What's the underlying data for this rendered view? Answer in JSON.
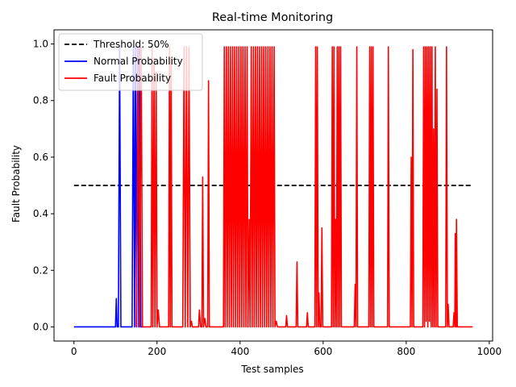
{
  "chart_data": {
    "type": "line",
    "title": "Real-time Monitoring",
    "xlabel": "Test samples",
    "ylabel": "Fault Probability",
    "xlim": [
      -48,
      1008
    ],
    "ylim": [
      -0.05,
      1.05
    ],
    "xticks": [
      0,
      200,
      400,
      600,
      800,
      1000
    ],
    "yticks": [
      0.0,
      0.2,
      0.4,
      0.6,
      0.8,
      1.0
    ],
    "xtick_labels": [
      "0",
      "200",
      "400",
      "600",
      "800",
      "1000"
    ],
    "ytick_labels": [
      "0.0",
      "0.2",
      "0.4",
      "0.6",
      "0.8",
      "1.0"
    ],
    "grid": false,
    "legend_position": "top-left",
    "threshold": {
      "name": "Threshold: 50%",
      "value": 0.5,
      "x_range": [
        0,
        960
      ],
      "color": "#000000",
      "style": "dashed"
    },
    "series": [
      {
        "name": "Normal Probability",
        "color": "#0000ff",
        "points": [
          [
            0,
            0.0
          ],
          [
            100,
            0.0
          ],
          [
            102,
            0.1
          ],
          [
            104,
            0.0
          ],
          [
            107,
            0.0
          ],
          [
            110,
            0.99
          ],
          [
            113,
            0.0
          ],
          [
            140,
            0.0
          ],
          [
            143,
            0.99
          ],
          [
            146,
            0.0
          ],
          [
            148,
            0.99
          ],
          [
            151,
            0.0
          ],
          [
            153,
            0.99
          ],
          [
            156,
            0.0
          ],
          [
            158,
            0.99
          ],
          [
            161,
            0.0
          ],
          [
            166,
            0.0
          ]
        ]
      },
      {
        "name": "Fault Probability",
        "color": "#ff0000",
        "points": [
          [
            150,
            0.0
          ],
          [
            155,
            0.99
          ],
          [
            158,
            0.0
          ],
          [
            162,
            0.99
          ],
          [
            165,
            0.0
          ],
          [
            175,
            0.0
          ],
          [
            186,
            0.0
          ],
          [
            188,
            0.99
          ],
          [
            190,
            0.0
          ],
          [
            193,
            0.95
          ],
          [
            195,
            0.0
          ],
          [
            198,
            0.9
          ],
          [
            200,
            0.0
          ],
          [
            203,
            0.06
          ],
          [
            206,
            0.0
          ],
          [
            228,
            0.0
          ],
          [
            230,
            0.99
          ],
          [
            232,
            0.0
          ],
          [
            234,
            0.95
          ],
          [
            236,
            0.0
          ],
          [
            262,
            0.0
          ],
          [
            265,
            0.99
          ],
          [
            268,
            0.0
          ],
          [
            271,
            0.99
          ],
          [
            274,
            0.0
          ],
          [
            277,
            0.99
          ],
          [
            280,
            0.0
          ],
          [
            283,
            0.02
          ],
          [
            285,
            0.0
          ],
          [
            300,
            0.0
          ],
          [
            302,
            0.06
          ],
          [
            305,
            0.0
          ],
          [
            308,
            0.0
          ],
          [
            310,
            0.53
          ],
          [
            312,
            0.0
          ],
          [
            315,
            0.03
          ],
          [
            318,
            0.0
          ],
          [
            322,
            0.0
          ],
          [
            324,
            0.87
          ],
          [
            326,
            0.0
          ],
          [
            330,
            0.0
          ],
          [
            360,
            0.0
          ],
          [
            362,
            0.99
          ],
          [
            364,
            0.0
          ],
          [
            367,
            0.99
          ],
          [
            369,
            0.0
          ],
          [
            372,
            0.99
          ],
          [
            374,
            0.0
          ],
          [
            377,
            0.99
          ],
          [
            379,
            0.0
          ],
          [
            382,
            0.99
          ],
          [
            384,
            0.0
          ],
          [
            387,
            0.99
          ],
          [
            389,
            0.0
          ],
          [
            392,
            0.99
          ],
          [
            394,
            0.0
          ],
          [
            397,
            0.99
          ],
          [
            399,
            0.0
          ],
          [
            402,
            0.99
          ],
          [
            404,
            0.0
          ],
          [
            407,
            0.99
          ],
          [
            409,
            0.0
          ],
          [
            412,
            0.99
          ],
          [
            414,
            0.0
          ],
          [
            417,
            0.99
          ],
          [
            419,
            0.0
          ],
          [
            422,
            0.38
          ],
          [
            424,
            0.0
          ],
          [
            427,
            0.99
          ],
          [
            429,
            0.0
          ],
          [
            432,
            0.99
          ],
          [
            434,
            0.0
          ],
          [
            437,
            0.99
          ],
          [
            439,
            0.0
          ],
          [
            442,
            0.99
          ],
          [
            444,
            0.0
          ],
          [
            447,
            0.99
          ],
          [
            449,
            0.0
          ],
          [
            452,
            0.99
          ],
          [
            454,
            0.0
          ],
          [
            457,
            0.99
          ],
          [
            459,
            0.0
          ],
          [
            462,
            0.99
          ],
          [
            464,
            0.0
          ],
          [
            467,
            0.99
          ],
          [
            469,
            0.0
          ],
          [
            472,
            0.99
          ],
          [
            474,
            0.0
          ],
          [
            477,
            0.99
          ],
          [
            479,
            0.0
          ],
          [
            482,
            0.99
          ],
          [
            484,
            0.0
          ],
          [
            487,
            0.02
          ],
          [
            490,
            0.0
          ],
          [
            510,
            0.0
          ],
          [
            512,
            0.04
          ],
          [
            514,
            0.0
          ],
          [
            535,
            0.0
          ],
          [
            537,
            0.23
          ],
          [
            539,
            0.0
          ],
          [
            560,
            0.0
          ],
          [
            562,
            0.05
          ],
          [
            564,
            0.0
          ],
          [
            580,
            0.0
          ],
          [
            582,
            0.99
          ],
          [
            584,
            0.0
          ],
          [
            586,
            0.99
          ],
          [
            588,
            0.0
          ],
          [
            590,
            0.12
          ],
          [
            592,
            0.0
          ],
          [
            595,
            0.0
          ],
          [
            597,
            0.35
          ],
          [
            599,
            0.0
          ],
          [
            620,
            0.0
          ],
          [
            622,
            0.99
          ],
          [
            624,
            0.0
          ],
          [
            626,
            0.99
          ],
          [
            628,
            0.0
          ],
          [
            630,
            0.38
          ],
          [
            632,
            0.0
          ],
          [
            634,
            0.99
          ],
          [
            636,
            0.0
          ],
          [
            638,
            0.99
          ],
          [
            640,
            0.0
          ],
          [
            642,
            0.99
          ],
          [
            644,
            0.0
          ],
          [
            660,
            0.0
          ],
          [
            675,
            0.0
          ],
          [
            677,
            0.15
          ],
          [
            679,
            0.0
          ],
          [
            681,
            0.99
          ],
          [
            683,
            0.0
          ],
          [
            710,
            0.0
          ],
          [
            712,
            0.99
          ],
          [
            714,
            0.0
          ],
          [
            716,
            0.99
          ],
          [
            718,
            0.0
          ],
          [
            720,
            0.99
          ],
          [
            722,
            0.0
          ],
          [
            755,
            0.0
          ],
          [
            757,
            0.99
          ],
          [
            759,
            0.0
          ],
          [
            810,
            0.0
          ],
          [
            812,
            0.6
          ],
          [
            814,
            0.0
          ],
          [
            816,
            0.98
          ],
          [
            818,
            0.0
          ],
          [
            840,
            0.0
          ],
          [
            842,
            0.99
          ],
          [
            844,
            0.0
          ],
          [
            846,
            0.99
          ],
          [
            848,
            0.02
          ],
          [
            850,
            0.99
          ],
          [
            852,
            0.0
          ],
          [
            854,
            0.99
          ],
          [
            856,
            0.02
          ],
          [
            858,
            0.99
          ],
          [
            860,
            0.0
          ],
          [
            862,
            0.99
          ],
          [
            864,
            0.0
          ],
          [
            866,
            0.7
          ],
          [
            868,
            0.0
          ],
          [
            870,
            0.99
          ],
          [
            872,
            0.0
          ],
          [
            874,
            0.84
          ],
          [
            876,
            0.0
          ],
          [
            895,
            0.0
          ],
          [
            897,
            0.99
          ],
          [
            899,
            0.0
          ],
          [
            901,
            0.08
          ],
          [
            903,
            0.0
          ],
          [
            913,
            0.0
          ],
          [
            915,
            0.05
          ],
          [
            917,
            0.0
          ],
          [
            918,
            0.33
          ],
          [
            920,
            0.0
          ],
          [
            921,
            0.38
          ],
          [
            923,
            0.0
          ],
          [
            960,
            0.0
          ]
        ]
      }
    ]
  }
}
